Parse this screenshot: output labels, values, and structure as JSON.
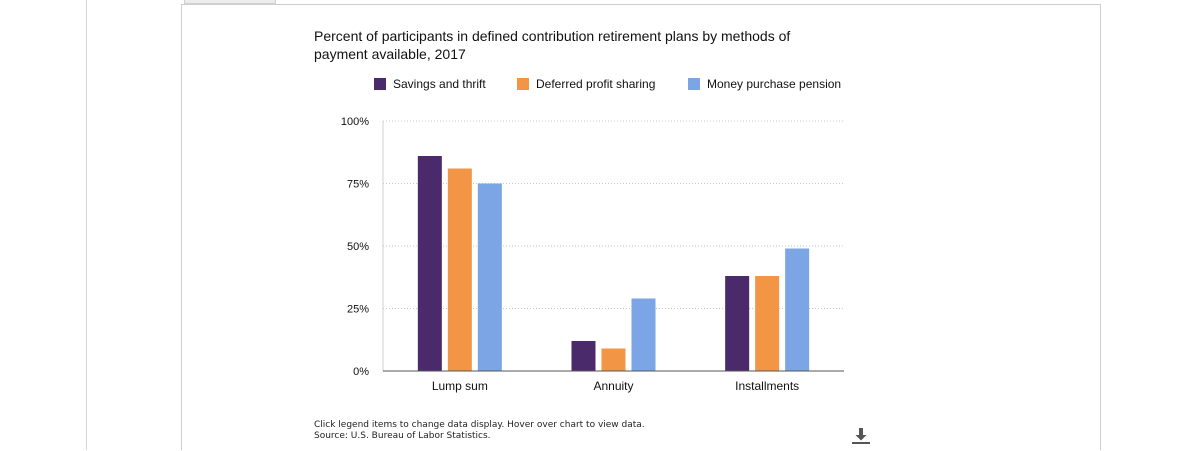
{
  "chart_data": {
    "type": "bar",
    "title": "Percent of participants in defined contribution retirement plans by methods of payment available, 2017",
    "categories": [
      "Lump sum",
      "Annuity",
      "Installments"
    ],
    "series": [
      {
        "name": "Savings and thrift",
        "values": [
          86,
          12,
          38
        ],
        "color": "#4a2a6b"
      },
      {
        "name": "Deferred profit sharing",
        "values": [
          81,
          9,
          38
        ],
        "color": "#f29545"
      },
      {
        "name": "Money purchase pension",
        "values": [
          75,
          29,
          49
        ],
        "color": "#7ba5e4"
      }
    ],
    "y_ticks": [
      "0%",
      "25%",
      "50%",
      "75%",
      "100%"
    ],
    "ylim": [
      0,
      100
    ],
    "grid": true,
    "legend_position": "top"
  },
  "footer": {
    "note": "Click legend items to change data display. Hover over chart to view data.",
    "source": "Source: U.S. Bureau of Labor Statistics."
  },
  "download_icon": "download-icon"
}
